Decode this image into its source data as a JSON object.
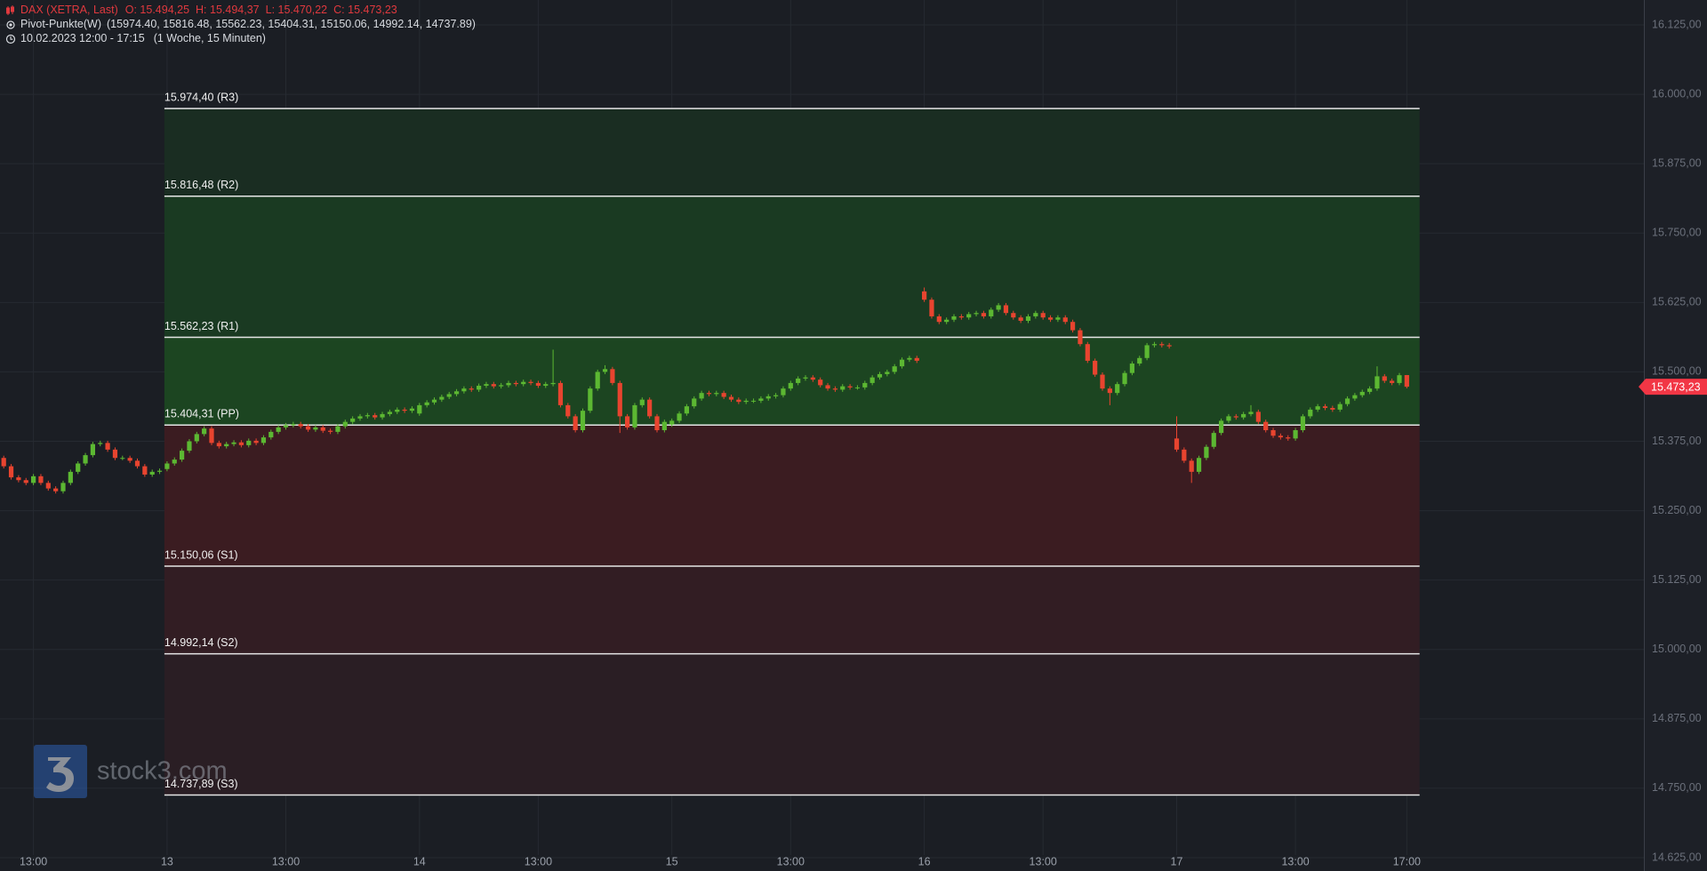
{
  "header": {
    "symbol": "DAX (XETRA, Last)",
    "ohlc": [
      "O: 15.494,25",
      "H: 15.494,37",
      "L: 15.470,22",
      "C: 15.473,23"
    ],
    "indicator": "Pivot-Punkte(W)",
    "indicator_values": "(15974.40,  15816.48,  15562.23,  15404.31,  15150.06,  14992.14,  14737.89)",
    "range": "10.02.2023 12:00 - 17:15",
    "range_note": "(1 Woche, 15 Minuten)",
    "watermark": "stock3.com"
  },
  "chart_data": {
    "type": "candlestick",
    "up_color": "#5cb832",
    "down_color": "#e8442f",
    "grid": true,
    "ylim": [
      14625,
      16125
    ],
    "yticks": [
      {
        "value": 14625,
        "label": "14.625,00"
      },
      {
        "value": 14750,
        "label": "14.750,00"
      },
      {
        "value": 14875,
        "label": "14.875,00"
      },
      {
        "value": 15000,
        "label": "15.000,00"
      },
      {
        "value": 15125,
        "label": "15.125,00"
      },
      {
        "value": 15250,
        "label": "15.250,00"
      },
      {
        "value": 15375,
        "label": "15.375,00"
      },
      {
        "value": 15500,
        "label": "15.500,00"
      },
      {
        "value": 15625,
        "label": "15.625,00"
      },
      {
        "value": 15750,
        "label": "15.750,00"
      },
      {
        "value": 15875,
        "label": "15.875,00"
      },
      {
        "value": 16000,
        "label": "16.000,00"
      },
      {
        "value": 16125,
        "label": "16.125,00"
      }
    ],
    "pivots": [
      {
        "value": 15974.4,
        "label": "15.974,40 (R3)",
        "fill": "#1a2d22"
      },
      {
        "value": 15816.48,
        "label": "15.816,48 (R2)",
        "fill": "#1a3a22"
      },
      {
        "value": 15562.23,
        "label": "15.562,23 (R1)",
        "fill": "#1c4521"
      },
      {
        "value": 15404.31,
        "label": "15.404,31 (PP)"
      },
      {
        "value": 15150.06,
        "label": "15.150,06 (S1)",
        "fill": "#3b1c21"
      },
      {
        "value": 14992.14,
        "label": "14.992,14 (S2)",
        "fill": "#321d23"
      },
      {
        "value": 14737.89,
        "label": "14.737,89 (S3)",
        "fill": "#2a1e24"
      }
    ],
    "last_price": {
      "value": 15473.23,
      "label": "15.473,23",
      "color": "#f23645"
    },
    "categories": [
      null,
      null,
      null,
      null,
      "13:00",
      null,
      null,
      null,
      null,
      null,
      null,
      null,
      null,
      null,
      null,
      null,
      null,
      null,
      null,
      null,
      null,
      null,
      "13",
      null,
      null,
      null,
      null,
      null,
      null,
      null,
      null,
      null,
      null,
      null,
      null,
      null,
      null,
      null,
      "13:00",
      null,
      null,
      null,
      null,
      null,
      null,
      null,
      null,
      null,
      null,
      null,
      null,
      null,
      null,
      null,
      null,
      null,
      "14",
      null,
      null,
      null,
      null,
      null,
      null,
      null,
      null,
      null,
      null,
      null,
      null,
      null,
      null,
      null,
      "13:00",
      null,
      null,
      null,
      null,
      null,
      null,
      null,
      null,
      null,
      null,
      null,
      null,
      null,
      null,
      null,
      null,
      null,
      "15",
      null,
      null,
      null,
      null,
      null,
      null,
      null,
      null,
      null,
      null,
      null,
      null,
      null,
      null,
      null,
      "13:00",
      null,
      null,
      null,
      null,
      null,
      null,
      null,
      null,
      null,
      null,
      null,
      null,
      null,
      null,
      null,
      null,
      null,
      "16",
      null,
      null,
      null,
      null,
      null,
      null,
      null,
      null,
      null,
      null,
      null,
      null,
      null,
      null,
      null,
      "13:00",
      null,
      null,
      null,
      null,
      null,
      null,
      null,
      null,
      null,
      null,
      null,
      null,
      null,
      null,
      null,
      null,
      null,
      "17",
      null,
      null,
      null,
      null,
      null,
      null,
      null,
      null,
      null,
      null,
      null,
      null,
      null,
      null,
      null,
      "13:00",
      null,
      null,
      null,
      null,
      null,
      null,
      null,
      null,
      null,
      null,
      null,
      null,
      null,
      null,
      "17:00"
    ],
    "open": [
      15345,
      15330,
      15310,
      15305,
      15300,
      15312,
      15300,
      15290,
      15285,
      15300,
      15320,
      15335,
      15350,
      15370,
      15372,
      15360,
      15345,
      15345,
      15340,
      15330,
      15315,
      15320,
      15325,
      15335,
      15342,
      15358,
      15375,
      15388,
      15398,
      15372,
      15366,
      15370,
      15373,
      15368,
      15376,
      15372,
      15382,
      15392,
      15400,
      15404,
      15406,
      15402,
      15396,
      15400,
      15394,
      15392,
      15402,
      15410,
      15416,
      15420,
      15422,
      15418,
      15424,
      15428,
      15432,
      15430,
      15425,
      15440,
      15445,
      15450,
      15455,
      15460,
      15465,
      15470,
      15468,
      15475,
      15478,
      15474,
      15476,
      15480,
      15478,
      15482,
      15480,
      15475,
      15478,
      15480,
      15440,
      15420,
      15395,
      15430,
      15470,
      15500,
      15505,
      15480,
      15420,
      15400,
      15440,
      15450,
      15420,
      15395,
      15405,
      15412,
      15425,
      15438,
      15452,
      15462,
      15460,
      15462,
      15455,
      15450,
      15446,
      15448,
      15448,
      15452,
      15456,
      15458,
      15470,
      15480,
      15488,
      15490,
      15486,
      15476,
      15470,
      15468,
      15474,
      15472,
      15472,
      15480,
      15490,
      15496,
      15500,
      15510,
      15522,
      15525,
      15645,
      15630,
      15600,
      15590,
      15594,
      15600,
      15598,
      15604,
      15606,
      15600,
      15612,
      15620,
      15606,
      15598,
      15592,
      15600,
      15606,
      15598,
      15594,
      15598,
      15590,
      15575,
      15550,
      15520,
      15495,
      15470,
      15462,
      15478,
      15498,
      15515,
      15525,
      15548,
      15550,
      15548,
      15380,
      15360,
      15340,
      15320,
      15345,
      15365,
      15390,
      15412,
      15420,
      15418,
      15424,
      15428,
      15410,
      15395,
      15385,
      15382,
      15380,
      15395,
      15420,
      15432,
      15438,
      15435,
      15432,
      15442,
      15452,
      15458,
      15464,
      15470,
      15492,
      15484,
      15480,
      15494.25
    ],
    "high": [
      15349,
      15334,
      15314,
      15309,
      15316,
      15316,
      15304,
      15294,
      15304,
      15324,
      15339,
      15354,
      15374,
      15376,
      15376,
      15364,
      15349,
      15349,
      15344,
      15334,
      15324,
      15326,
      15339,
      15346,
      15362,
      15379,
      15392,
      15402,
      15402,
      15376,
      15374,
      15377,
      15377,
      15380,
      15380,
      15386,
      15396,
      15404,
      15408,
      15410,
      15410,
      15406,
      15404,
      15404,
      15398,
      15406,
      15414,
      15420,
      15424,
      15426,
      15426,
      15428,
      15432,
      15436,
      15436,
      15438,
      15444,
      15449,
      15454,
      15459,
      15464,
      15469,
      15474,
      15474,
      15479,
      15482,
      15482,
      15480,
      15484,
      15484,
      15486,
      15486,
      15484,
      15482,
      15540,
      15484,
      15444,
      15424,
      15434,
      15474,
      15504,
      15512,
      15509,
      15484,
      15424,
      15444,
      15454,
      15454,
      15424,
      15414,
      15416,
      15429,
      15442,
      15456,
      15466,
      15466,
      15466,
      15466,
      15459,
      15454,
      15452,
      15452,
      15456,
      15460,
      15462,
      15474,
      15484,
      15492,
      15494,
      15494,
      15490,
      15480,
      15474,
      15478,
      15478,
      15476,
      15484,
      15494,
      15500,
      15504,
      15514,
      15526,
      15529,
      15529,
      15652,
      15634,
      15604,
      15598,
      15604,
      15604,
      15608,
      15610,
      15610,
      15616,
      15624,
      15624,
      15610,
      15602,
      15604,
      15610,
      15610,
      15602,
      15602,
      15602,
      15594,
      15579,
      15554,
      15524,
      15499,
      15474,
      15482,
      15502,
      15519,
      15529,
      15552,
      15554,
      15554,
      15552,
      15420,
      15364,
      15344,
      15349,
      15369,
      15394,
      15416,
      15424,
      15424,
      15428,
      15440,
      15432,
      15414,
      15399,
      15389,
      15386,
      15399,
      15424,
      15436,
      15442,
      15442,
      15439,
      15446,
      15456,
      15462,
      15468,
      15474,
      15510,
      15496,
      15488,
      15498,
      15494.37
    ],
    "low": [
      15326,
      15306,
      15301,
      15296,
      15296,
      15296,
      15286,
      15281,
      15281,
      15296,
      15316,
      15331,
      15346,
      15366,
      15356,
      15341,
      15341,
      15336,
      15326,
      15311,
      15311,
      15316,
      15321,
      15331,
      15338,
      15354,
      15371,
      15384,
      15368,
      15362,
      15362,
      15366,
      15364,
      15364,
      15368,
      15368,
      15378,
      15388,
      15396,
      15400,
      15398,
      15392,
      15392,
      15390,
      15388,
      15388,
      15398,
      15406,
      15412,
      15416,
      15414,
      15414,
      15420,
      15424,
      15426,
      15426,
      15421,
      15436,
      15441,
      15446,
      15451,
      15456,
      15461,
      15464,
      15464,
      15471,
      15470,
      15470,
      15472,
      15474,
      15474,
      15476,
      15471,
      15471,
      15474,
      15436,
      15416,
      15391,
      15391,
      15426,
      15466,
      15496,
      15476,
      15390,
      15396,
      15396,
      15436,
      15416,
      15391,
      15391,
      15401,
      15408,
      15421,
      15434,
      15448,
      15456,
      15456,
      15451,
      15446,
      15442,
      15442,
      15444,
      15444,
      15448,
      15452,
      15454,
      15466,
      15476,
      15484,
      15482,
      15472,
      15466,
      15464,
      15464,
      15468,
      15468,
      15468,
      15476,
      15486,
      15492,
      15496,
      15506,
      15518,
      15516,
      15626,
      15596,
      15586,
      15586,
      15590,
      15594,
      15594,
      15600,
      15596,
      15596,
      15608,
      15602,
      15594,
      15588,
      15588,
      15596,
      15594,
      15590,
      15590,
      15586,
      15571,
      15546,
      15516,
      15491,
      15466,
      15440,
      15458,
      15474,
      15494,
      15511,
      15521,
      15544,
      15544,
      15542,
      15356,
      15336,
      15300,
      15316,
      15341,
      15361,
      15386,
      15408,
      15414,
      15414,
      15420,
      15406,
      15391,
      15381,
      15378,
      15376,
      15376,
      15391,
      15416,
      15428,
      15431,
      15428,
      15428,
      15438,
      15448,
      15454,
      15460,
      15466,
      15480,
      15476,
      15476,
      15470.22
    ],
    "close": [
      15330,
      15310,
      15305,
      15300,
      15312,
      15300,
      15290,
      15285,
      15300,
      15320,
      15335,
      15350,
      15370,
      15372,
      15360,
      15345,
      15345,
      15340,
      15330,
      15315,
      15320,
      15322,
      15335,
      15342,
      15358,
      15375,
      15388,
      15398,
      15372,
      15366,
      15370,
      15373,
      15368,
      15376,
      15372,
      15382,
      15392,
      15400,
      15404,
      15406,
      15402,
      15396,
      15400,
      15394,
      15392,
      15402,
      15410,
      15416,
      15420,
      15422,
      15418,
      15424,
      15428,
      15432,
      15430,
      15434,
      15440,
      15445,
      15450,
      15455,
      15460,
      15465,
      15470,
      15468,
      15475,
      15478,
      15474,
      15476,
      15480,
      15478,
      15482,
      15480,
      15475,
      15478,
      15480,
      15440,
      15420,
      15395,
      15430,
      15470,
      15500,
      15505,
      15480,
      15420,
      15400,
      15440,
      15450,
      15420,
      15395,
      15410,
      15412,
      15425,
      15438,
      15452,
      15462,
      15460,
      15462,
      15455,
      15450,
      15446,
      15448,
      15448,
      15452,
      15456,
      15458,
      15470,
      15480,
      15488,
      15490,
      15486,
      15476,
      15470,
      15468,
      15474,
      15472,
      15472,
      15480,
      15490,
      15496,
      15500,
      15510,
      15522,
      15525,
      15520,
      15630,
      15600,
      15590,
      15594,
      15600,
      15598,
      15604,
      15606,
      15600,
      15612,
      15620,
      15606,
      15598,
      15592,
      15600,
      15606,
      15598,
      15594,
      15598,
      15590,
      15575,
      15550,
      15520,
      15495,
      15470,
      15462,
      15478,
      15498,
      15515,
      15525,
      15548,
      15550,
      15548,
      15546,
      15360,
      15340,
      15320,
      15345,
      15365,
      15390,
      15412,
      15420,
      15418,
      15424,
      15428,
      15410,
      15395,
      15385,
      15382,
      15380,
      15395,
      15420,
      15432,
      15438,
      15435,
      15432,
      15442,
      15452,
      15458,
      15464,
      15470,
      15492,
      15484,
      15480,
      15494,
      15473.23
    ]
  }
}
